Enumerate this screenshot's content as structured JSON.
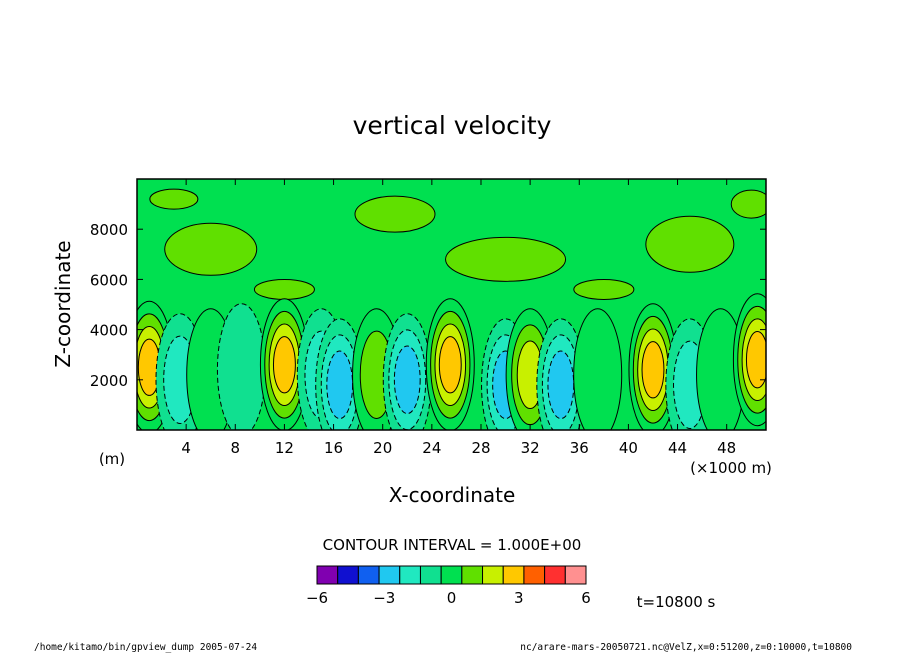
{
  "chart_data": {
    "type": "heatmap",
    "title": "vertical velocity",
    "xlabel": "X-coordinate",
    "ylabel": "Z-coordinate",
    "x_unit_label": "(m)",
    "x_scale_label": "(×1000 m)",
    "xlim": [
      0,
      51.2
    ],
    "ylim": [
      0,
      10000
    ],
    "x_ticks": [
      4,
      8,
      12,
      16,
      20,
      24,
      28,
      32,
      36,
      40,
      44,
      48
    ],
    "x_tick_labels": [
      "4",
      "8",
      "12",
      "16",
      "20",
      "24",
      "28",
      "32",
      "36",
      "40",
      "44",
      "48"
    ],
    "y_ticks": [
      2000,
      4000,
      6000,
      8000
    ],
    "y_tick_labels": [
      "2000",
      "4000",
      "6000",
      "8000"
    ],
    "contour_interval_text": "CONTOUR INTERVAL = 1.000E+00",
    "colorbar": {
      "levels": [
        -6,
        -5,
        -4,
        -3,
        -2,
        -1,
        0,
        1,
        2,
        3,
        4,
        5,
        6
      ],
      "tick_values": [
        -6,
        -3,
        0,
        3,
        6
      ],
      "tick_labels": [
        "−6",
        "−3",
        "0",
        "3",
        "6"
      ],
      "colors": [
        "#8000b0",
        "#1010d0",
        "#1060f0",
        "#20c8f0",
        "#20e8c0",
        "#10e090",
        "#00e050",
        "#60e000",
        "#c8f000",
        "#ffc800",
        "#ff6000",
        "#ff3030",
        "#ff9090"
      ]
    },
    "time_label": "t=10800 s",
    "cells": [
      {
        "x": 1.0,
        "z": 2500,
        "w": 4
      },
      {
        "x": 3.5,
        "z": 2000,
        "w": -2
      },
      {
        "x": 6.0,
        "z": 2200,
        "w": 1
      },
      {
        "x": 8.5,
        "z": 2400,
        "w": -1
      },
      {
        "x": 12.0,
        "z": 2600,
        "w": 4
      },
      {
        "x": 15.0,
        "z": 2200,
        "w": -2
      },
      {
        "x": 16.5,
        "z": 1800,
        "w": -3
      },
      {
        "x": 19.5,
        "z": 2200,
        "w": 2
      },
      {
        "x": 22.0,
        "z": 2000,
        "w": -3
      },
      {
        "x": 25.5,
        "z": 2600,
        "w": 4
      },
      {
        "x": 30.0,
        "z": 1800,
        "w": -3
      },
      {
        "x": 32.0,
        "z": 2200,
        "w": 3
      },
      {
        "x": 34.5,
        "z": 1800,
        "w": -3
      },
      {
        "x": 37.5,
        "z": 2200,
        "w": 1
      },
      {
        "x": 42.0,
        "z": 2400,
        "w": 4
      },
      {
        "x": 45.0,
        "z": 1800,
        "w": -2
      },
      {
        "x": 47.5,
        "z": 2200,
        "w": 1
      },
      {
        "x": 50.5,
        "z": 2800,
        "w": 4
      }
    ]
  },
  "footer": {
    "left": "/home/kitamo/bin/gpview_dump  2005-07-24",
    "right": "nc/arare-mars-20050721.nc@VelZ,x=0:51200,z=0:10000,t=10800"
  }
}
